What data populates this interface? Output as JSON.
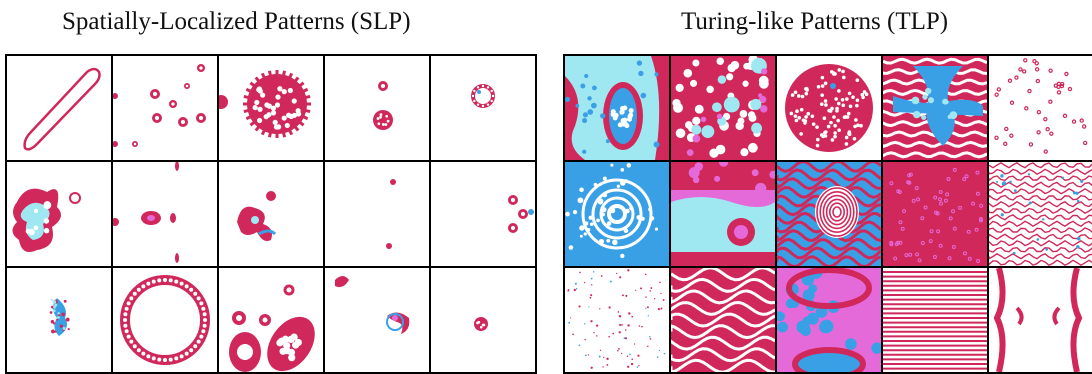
{
  "left_panel": {
    "title": "Spatially-Localized Patterns (SLP)",
    "tiles": [
      "diagonal-worm",
      "scattered-ring-spots",
      "spotted-disk",
      "ring-and-spotted-spot",
      "hollow-ring",
      "irregular-blob",
      "small-blob-cluster",
      "crescent-blobs",
      "two-dots",
      "triple-ring-dots",
      "small-cluster",
      "large-ring",
      "oval-spotted-blobs",
      "curled-fragments",
      "single-spot"
    ]
  },
  "right_panel": {
    "title": "Turing-like Patterns (TLP)",
    "tiles": [
      "mixed-blobs",
      "spots-and-patches",
      "dotted-disk",
      "labyrinth-cross",
      "sparse-rings",
      "concentric-rings",
      "bands-and-pool",
      "fingerprint-target",
      "dense-dots",
      "fine-labyrinth",
      "sparse-specks",
      "wavy-stripes",
      "hex-blobs",
      "horizontal-stripes",
      "vertical-columns"
    ]
  },
  "colors": {
    "crimson": "#d0285a",
    "blue": "#3aa0e6",
    "cyan": "#9fe8f2",
    "magenta": "#e56ad9",
    "border": "#000000"
  }
}
